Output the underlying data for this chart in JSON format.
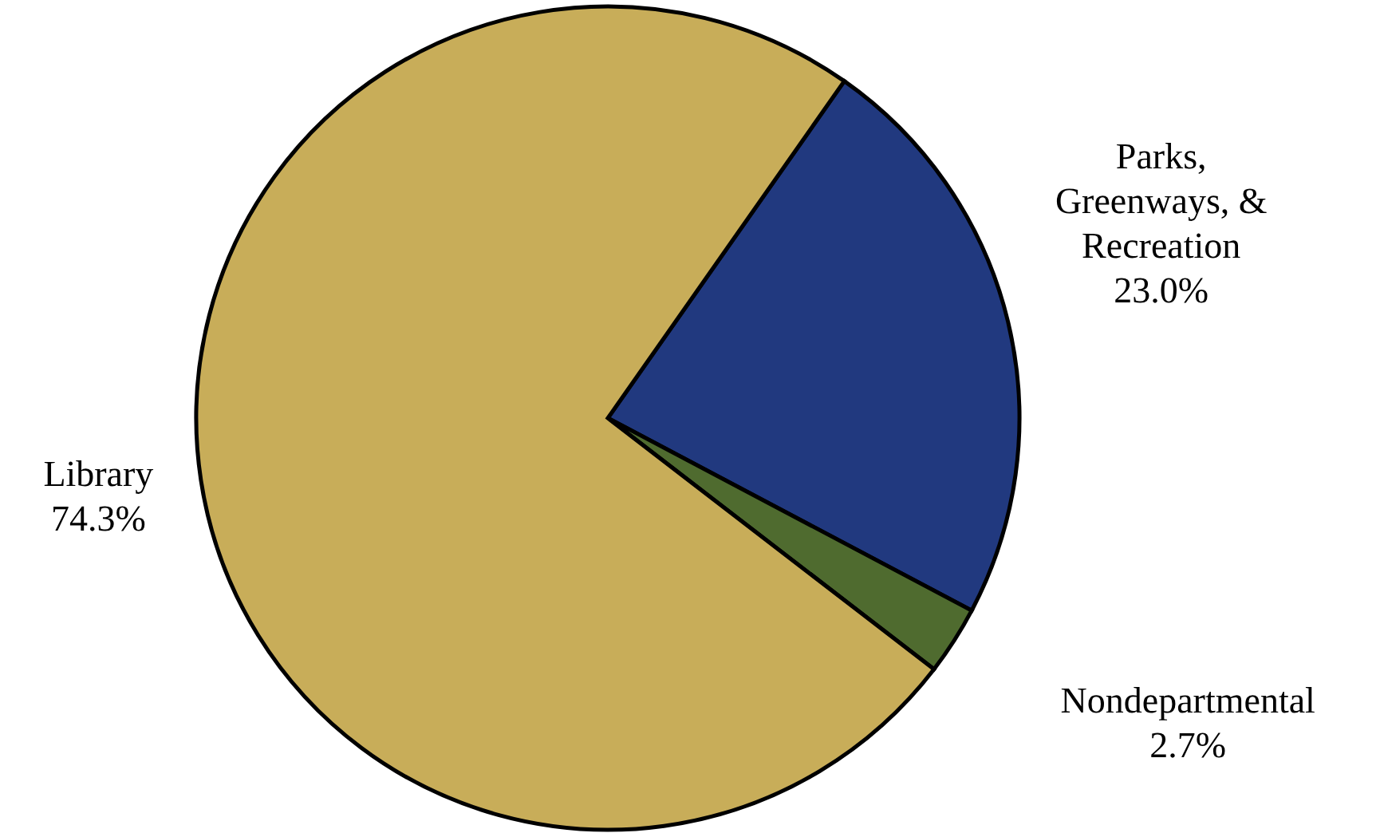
{
  "chart_data": {
    "type": "pie",
    "categories": [
      "Parks, Greenways, & Recreation",
      "Nondepartmental",
      "Library"
    ],
    "values": [
      23.0,
      2.7,
      74.3
    ],
    "colors": [
      "#21397f",
      "#4f6b2f",
      "#c8ad59"
    ],
    "value_labels": [
      "23.0%",
      "2.7%",
      "74.3%"
    ]
  }
}
